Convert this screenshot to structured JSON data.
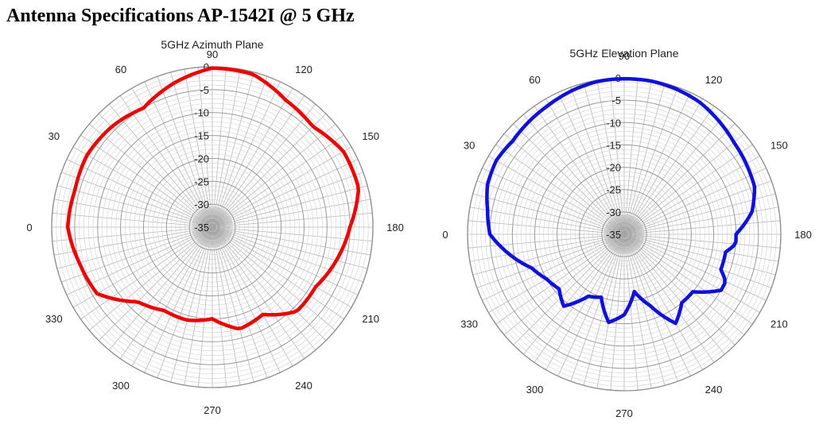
{
  "page": {
    "title": "Antenna Specifications AP-1542I @ 5 GHz"
  },
  "chart_data": [
    {
      "type": "polar",
      "title": "5GHz Azimuth Plane",
      "color": "#ee0000",
      "radial_range": [
        -35,
        0
      ],
      "radial_ticks": [
        0,
        -5,
        -10,
        -15,
        -20,
        -25,
        -30,
        -35
      ],
      "angle_ticks": [
        90,
        120,
        150,
        180,
        210,
        240,
        270,
        300,
        330,
        0,
        30,
        60
      ],
      "angle_step_deg": 5,
      "series": [
        {
          "angles": [
            0,
            15,
            30,
            45,
            60,
            75,
            90,
            105,
            120,
            135,
            150,
            165,
            180,
            195,
            210,
            225,
            240,
            255,
            270,
            285,
            300,
            315,
            330,
            345,
            360
          ],
          "values": [
            -3.5,
            -4,
            -3.5,
            -4,
            -5,
            -2.5,
            -0.3,
            -0.5,
            -3,
            -4,
            -2,
            -2,
            -5,
            -7,
            -9,
            -9,
            -13,
            -12,
            -15,
            -14,
            -14,
            -12,
            -6,
            -5,
            -3.5
          ]
        }
      ]
    },
    {
      "type": "polar",
      "title": "5GHz Elevation Plane",
      "color": "#1010dd",
      "radial_range": [
        -35,
        0
      ],
      "radial_ticks": [
        0,
        -5,
        -10,
        -15,
        -20,
        -25,
        -30,
        -35
      ],
      "angle_ticks": [
        90,
        120,
        150,
        180,
        210,
        240,
        270,
        300,
        330,
        0,
        30,
        60
      ],
      "angle_step_deg": 5,
      "series": [
        {
          "angles": [
            0,
            10,
            20,
            30,
            40,
            50,
            60,
            70,
            80,
            90,
            100,
            110,
            120,
            130,
            140,
            150,
            160,
            170,
            180,
            185,
            190,
            200,
            205,
            210,
            220,
            230,
            240,
            250,
            260,
            270,
            280,
            290,
            300,
            310,
            320,
            330,
            340,
            345,
            350,
            360
          ],
          "values": [
            -5,
            -4,
            -2.5,
            -2,
            -2.5,
            -2,
            -1.5,
            -0.8,
            -0.3,
            -0.2,
            -0.2,
            -0.5,
            -1,
            -2,
            -3,
            -3.5,
            -4,
            -6,
            -10,
            -10,
            -12,
            -12,
            -10,
            -10,
            -15,
            -15,
            -12,
            -18,
            -22,
            -17,
            -15,
            -20,
            -19,
            -14,
            -16,
            -15,
            -13,
            -11,
            -9,
            -5
          ]
        }
      ]
    }
  ]
}
